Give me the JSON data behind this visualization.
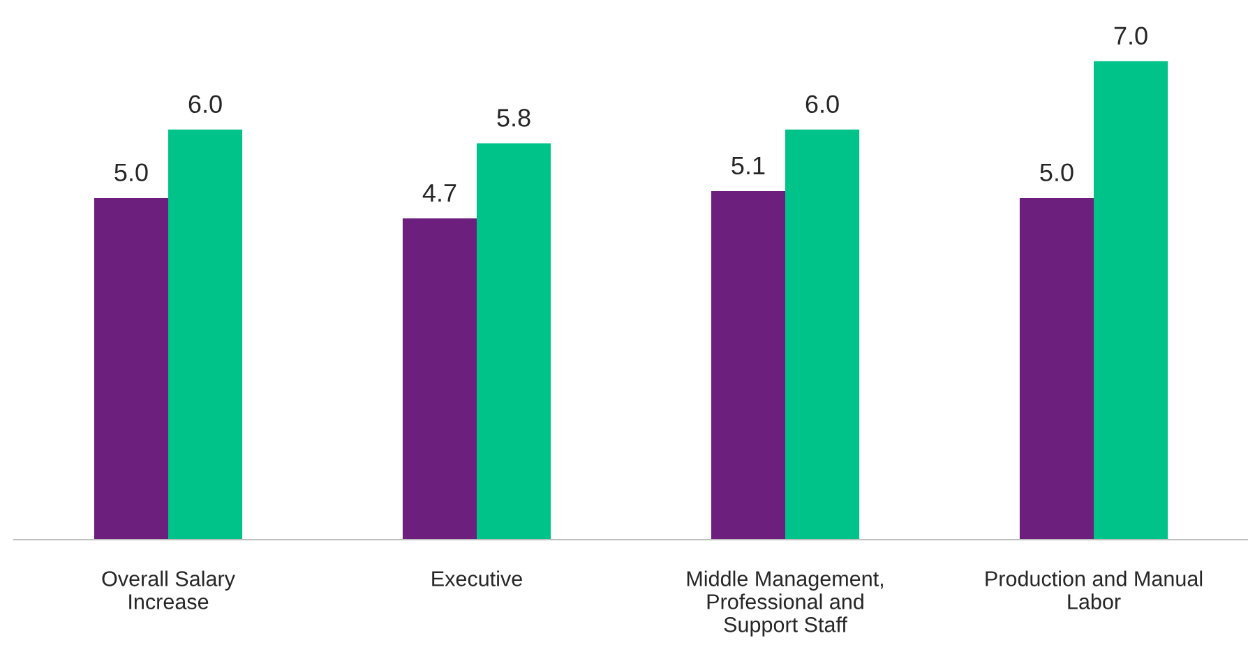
{
  "chart_data": {
    "type": "bar",
    "categories": [
      "Overall Salary\nIncrease",
      "Executive",
      "Middle Management,\nProfessional and\nSupport Staff",
      "Production and Manual\nLabor"
    ],
    "series": [
      {
        "color": "#6d1f7e",
        "values": [
          5.0,
          4.7,
          5.1,
          5.0
        ],
        "value_labels": [
          "5.0",
          "4.7",
          "5.1",
          "5.0"
        ]
      },
      {
        "color": "#00c389",
        "values": [
          6.0,
          5.8,
          6.0,
          7.0
        ],
        "value_labels": [
          "6.0",
          "5.8",
          "6.0",
          "7.0"
        ]
      }
    ],
    "grid": false,
    "legend": false
  }
}
